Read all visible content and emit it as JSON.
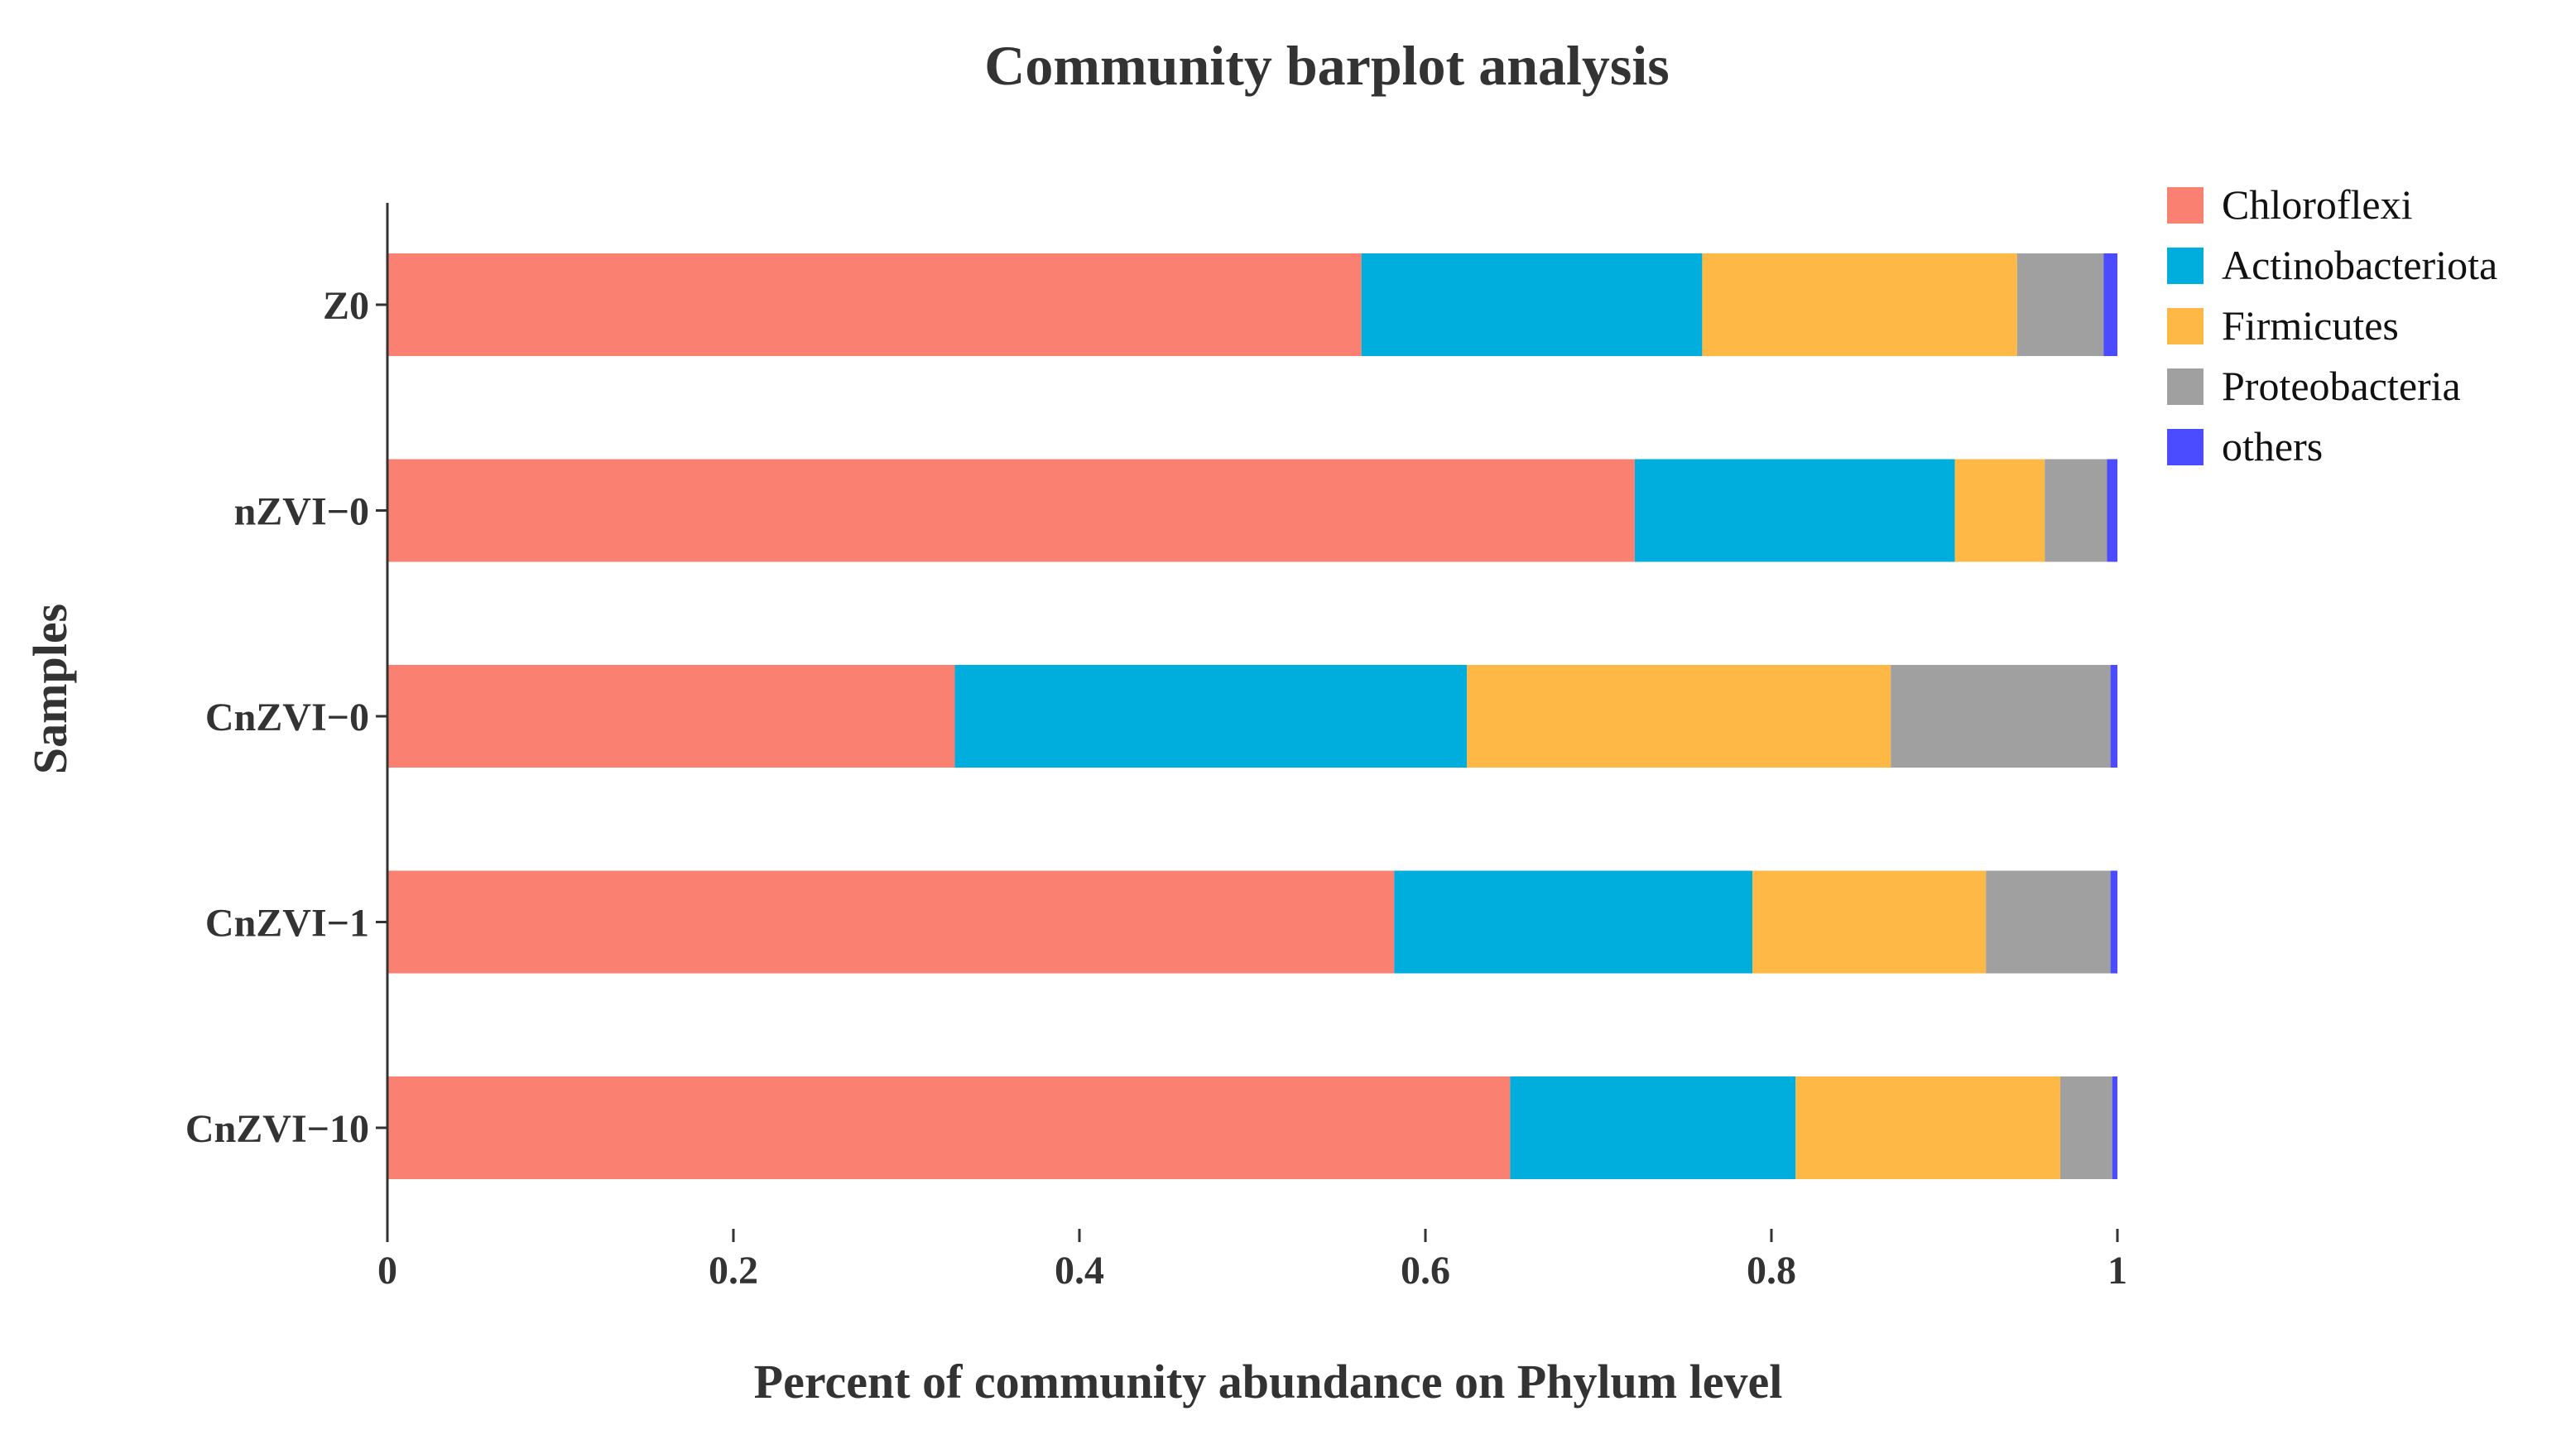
{
  "chart_data": {
    "type": "bar",
    "orientation": "horizontal",
    "stacked": true,
    "title": "Community barplot analysis",
    "xlabel": "Percent of community abundance on Phylum level",
    "ylabel": "Samples",
    "xlim": [
      0,
      1
    ],
    "xticks": [
      "0",
      "0.2",
      "0.4",
      "0.6",
      "0.8",
      "1"
    ],
    "categories": [
      "Z0",
      "nZVI−0",
      "CnZVI−0",
      "CnZVI−1",
      "CnZVI−10"
    ],
    "series": [
      {
        "name": "Chloroflexi",
        "color": "#FA8072",
        "values": [
          0.563,
          0.721,
          0.328,
          0.582,
          0.649
        ]
      },
      {
        "name": "Actinobacteriota",
        "color": "#00AEDE",
        "values": [
          0.197,
          0.185,
          0.296,
          0.207,
          0.165
        ]
      },
      {
        "name": "Firmicutes",
        "color": "#FEB846",
        "values": [
          0.182,
          0.052,
          0.245,
          0.135,
          0.153
        ]
      },
      {
        "name": "Proteobacteria",
        "color": "#A0A0A0",
        "values": [
          0.05,
          0.036,
          0.127,
          0.072,
          0.03
        ]
      },
      {
        "name": "others",
        "color": "#4B4BFF",
        "values": [
          0.008,
          0.006,
          0.004,
          0.004,
          0.003
        ]
      }
    ],
    "legend_position": "top-right",
    "grid": false
  }
}
